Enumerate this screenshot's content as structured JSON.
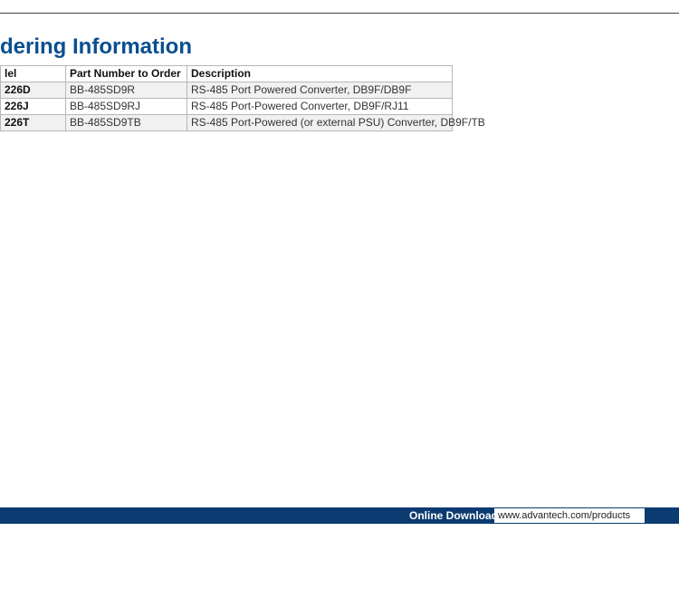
{
  "heading": "dering Information",
  "table": {
    "columns": [
      "lel",
      "Part Number to Order",
      "Description"
    ],
    "rows": [
      {
        "model": "226D",
        "part": "BB-485SD9R",
        "desc": "RS-485 Port Powered Converter, DB9F/DB9F"
      },
      {
        "model": "226J",
        "part": "BB-485SD9RJ",
        "desc": "RS-485 Port-Powered Converter, DB9F/RJ11"
      },
      {
        "model": "226T",
        "part": "BB-485SD9TB",
        "desc": "RS-485 Port-Powered (or external PSU) Converter, DB9F/TB"
      }
    ],
    "header_bg": "#ffffff",
    "alt_row_bg": "#f1f1f1",
    "border_color": "#b7b7b7",
    "font_size": 12
  },
  "footer": {
    "label": "Online Download",
    "url": "www.advantech.com/products",
    "bar_color": "#0b3b70"
  },
  "colors": {
    "heading": "#0a4f8f",
    "rule": "#444444"
  }
}
